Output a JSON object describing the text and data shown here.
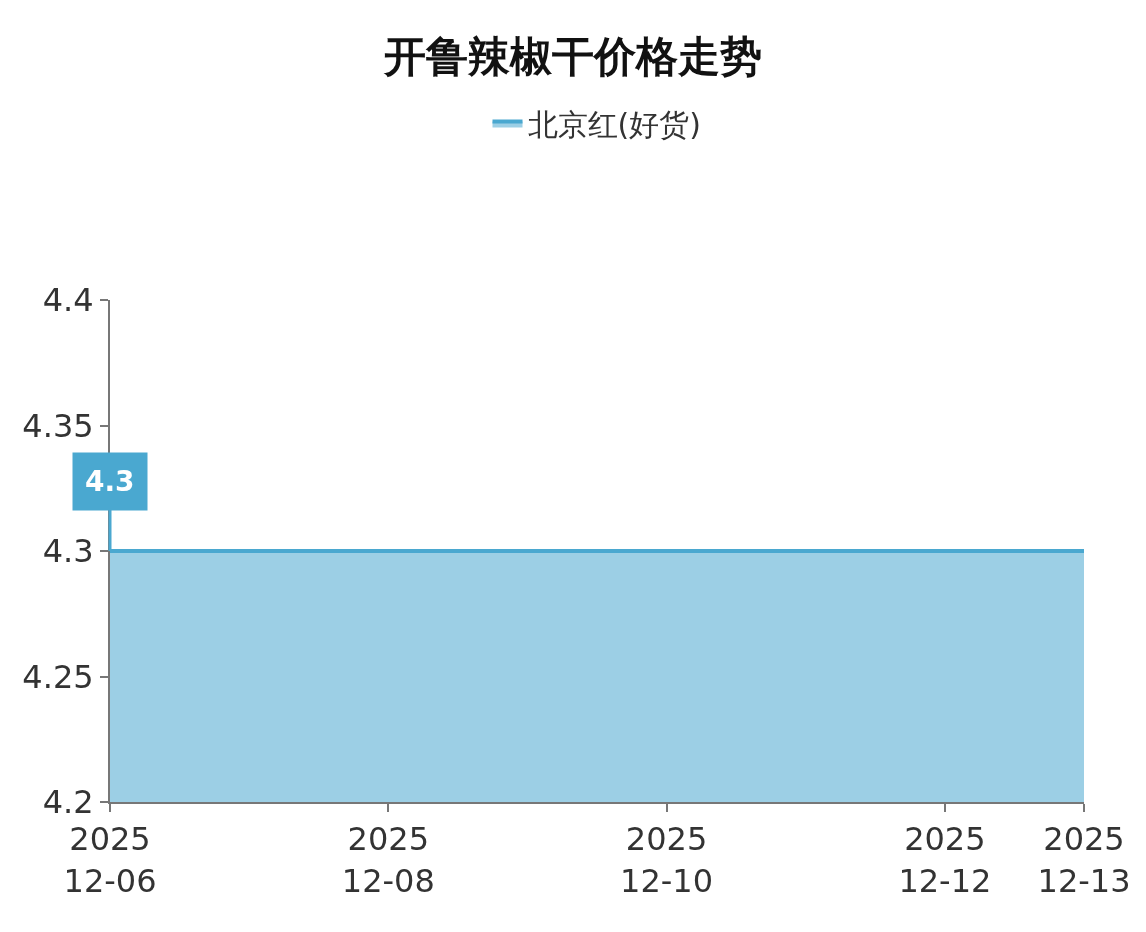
{
  "chart_data": {
    "type": "area",
    "title": "开鲁辣椒干价格走势",
    "x": [
      "2025-12-06",
      "2025-12-07",
      "2025-12-08",
      "2025-12-09",
      "2025-12-10",
      "2025-12-11",
      "2025-12-12",
      "2025-12-13"
    ],
    "series": [
      {
        "name": "北京红(好货)",
        "color": "#4aa8d0",
        "values": [
          4.3,
          4.3,
          4.3,
          4.3,
          4.3,
          4.3,
          4.3,
          4.3
        ],
        "value_labels": [
          "4.3",
          null,
          null,
          null,
          null,
          null,
          null,
          null
        ]
      }
    ],
    "xlim": [
      "2025-12-06",
      "2025-12-13"
    ],
    "xticks": [
      {
        "value": "2025-12-06",
        "label": "2025\n12-06"
      },
      {
        "value": "2025-12-08",
        "label": "2025\n12-08"
      },
      {
        "value": "2025-12-10",
        "label": "2025\n12-10"
      },
      {
        "value": "2025-12-12",
        "label": "2025\n12-12"
      },
      {
        "value": "2025-12-13",
        "label": "2025\n12-13"
      }
    ],
    "ylim": [
      4.2,
      4.4
    ],
    "yticks": [
      4.2,
      4.25,
      4.3,
      4.35,
      4.4
    ],
    "grid": false,
    "legend": "top",
    "marker": "none",
    "line_style": "solid"
  }
}
